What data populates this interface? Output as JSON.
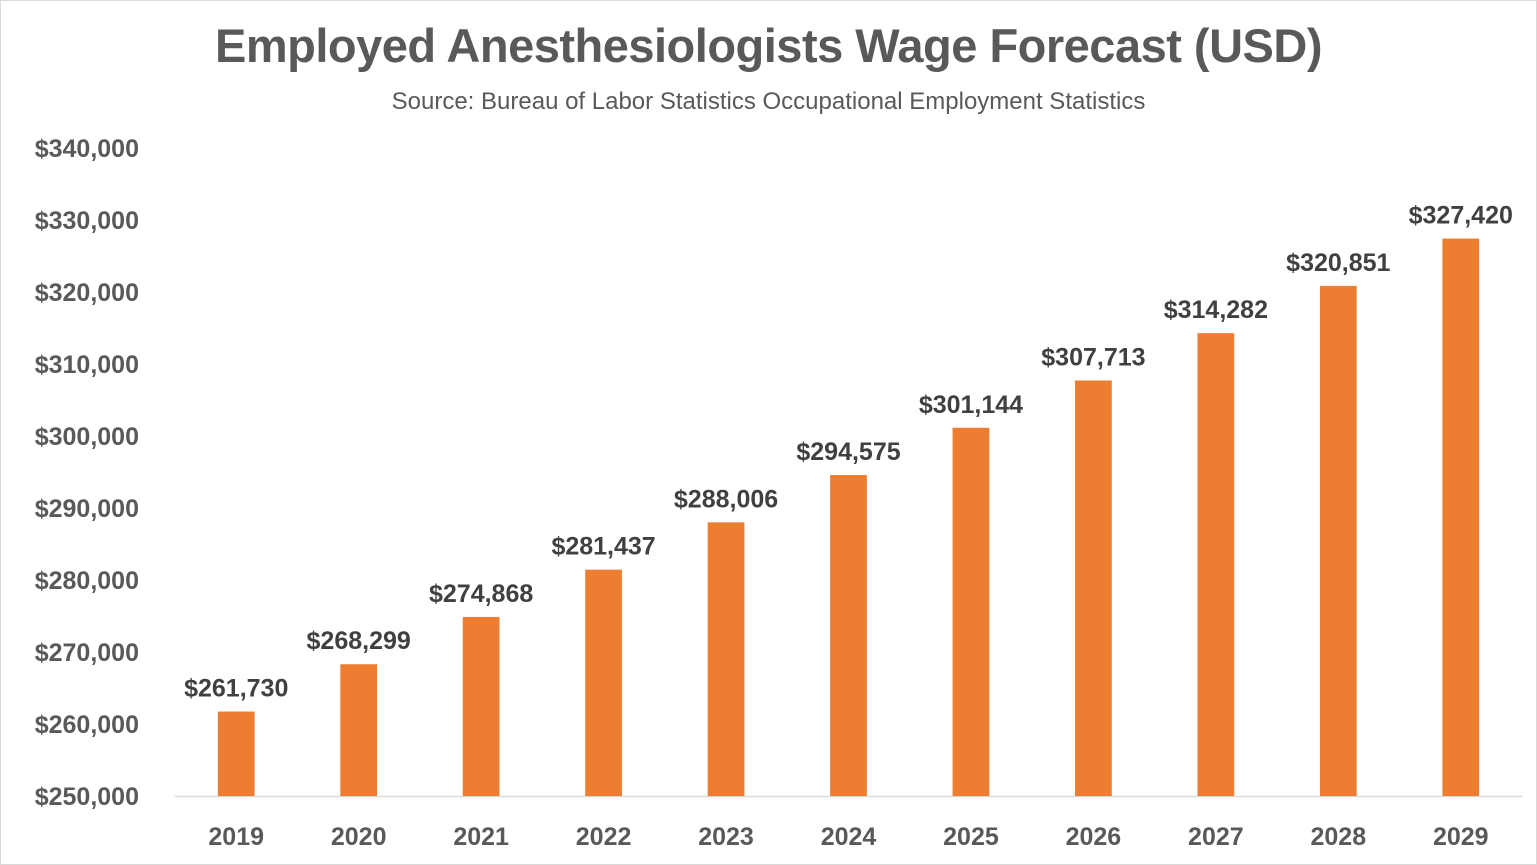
{
  "chart_data": {
    "type": "bar",
    "title": "Employed Anesthesiologists Wage Forecast (USD)",
    "subtitle": "Source: Bureau of Labor Statistics Occupational Employment Statistics",
    "xlabel": "",
    "ylabel": "",
    "categories": [
      "2019",
      "2020",
      "2021",
      "2022",
      "2023",
      "2024",
      "2025",
      "2026",
      "2027",
      "2028",
      "2029"
    ],
    "values": [
      261730,
      268299,
      274868,
      281437,
      288006,
      294575,
      301144,
      307713,
      314282,
      320851,
      327420
    ],
    "data_labels": [
      "$261,730",
      "$268,299",
      "$274,868",
      "$281,437",
      "$288,006",
      "$294,575",
      "$301,144",
      "$307,713",
      "$314,282",
      "$320,851",
      "$327,420"
    ],
    "ylim": [
      250000,
      340000
    ],
    "yticks": [
      250000,
      260000,
      270000,
      280000,
      290000,
      300000,
      310000,
      320000,
      330000,
      340000
    ],
    "ytick_labels": [
      "$250,000",
      "$260,000",
      "$270,000",
      "$280,000",
      "$290,000",
      "$300,000",
      "$310,000",
      "$320,000",
      "$330,000",
      "$340,000"
    ],
    "grid": false,
    "legend": "none",
    "colors": {
      "bar": "#ED7D31",
      "axis_line": "#D9D9D9",
      "text": "#595959",
      "data_label": "#404040"
    }
  }
}
